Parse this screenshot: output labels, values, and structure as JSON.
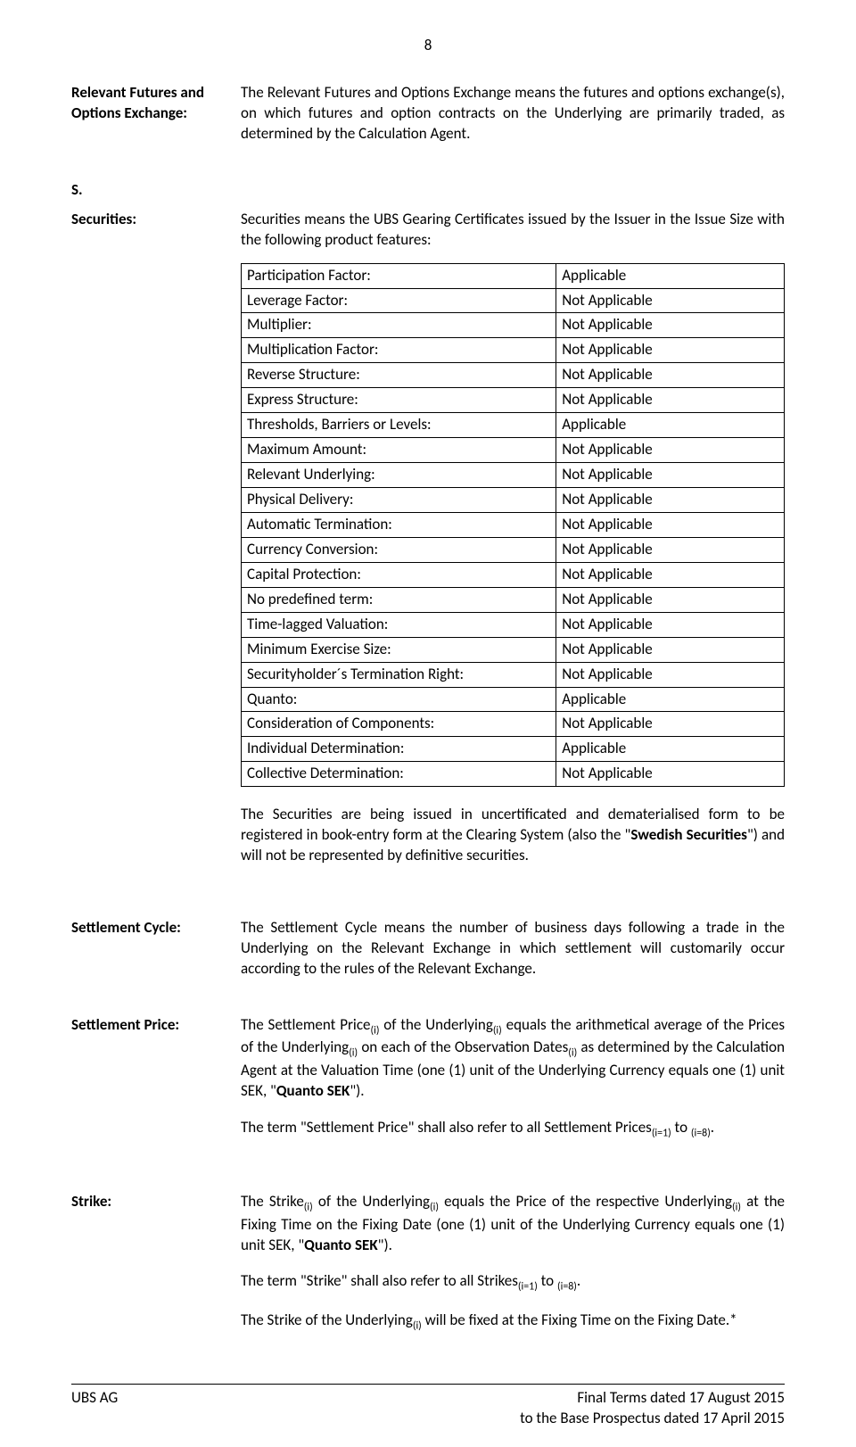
{
  "page_number": "8",
  "definitions": {
    "relevant_futures": {
      "term_line1": "Relevant Futures and",
      "term_line2": "Options Exchange:",
      "body": "The Relevant Futures and Options Exchange means the futures and options exchange(s), on which futures and option contracts on the Underlying are primarily traded, as determined by the Calculation Agent."
    },
    "section_letter": "S.",
    "securities": {
      "term": "Securities:",
      "intro": "Securities means the UBS Gearing Certificates issued by the Issuer in the Issue Size with the following product features:",
      "features": [
        [
          "Participation Factor:",
          "Applicable"
        ],
        [
          "Leverage Factor:",
          "Not Applicable"
        ],
        [
          "Multiplier:",
          "Not Applicable"
        ],
        [
          "Multiplication Factor:",
          "Not Applicable"
        ],
        [
          "Reverse Structure:",
          "Not Applicable"
        ],
        [
          "Express Structure:",
          "Not Applicable"
        ],
        [
          "Thresholds, Barriers or Levels:",
          "Applicable"
        ],
        [
          "Maximum Amount:",
          "Not Applicable"
        ],
        [
          "Relevant Underlying:",
          "Not Applicable"
        ],
        [
          "Physical Delivery:",
          "Not Applicable"
        ],
        [
          "Automatic Termination:",
          "Not Applicable"
        ],
        [
          "Currency Conversion:",
          "Not Applicable"
        ],
        [
          "Capital Protection:",
          "Not Applicable"
        ],
        [
          "No predefined term:",
          "Not Applicable"
        ],
        [
          "Time-lagged Valuation:",
          "Not Applicable"
        ],
        [
          "Minimum Exercise Size:",
          "Not Applicable"
        ],
        [
          "Securityholder´s Termination Right:",
          "Not Applicable"
        ],
        [
          "Quanto:",
          "Applicable"
        ],
        [
          "Consideration of Components:",
          "Not Applicable"
        ],
        [
          "Individual Determination:",
          "Applicable"
        ],
        [
          "Collective Determination:",
          "Not Applicable"
        ]
      ],
      "outro_prefix": "The Securities are being issued in uncertificated and dematerialised form to be registered in book-entry form at the Clearing System (also the \"",
      "outro_bold": "Swedish Securities",
      "outro_suffix": "\") and will not be represented by definitive securities."
    },
    "settlement_cycle": {
      "term": "Settlement Cycle:",
      "body": "The Settlement Cycle means the number of business days following a trade in the Underlying on the Relevant Exchange in which settlement will customarily occur according to the rules of the Relevant Exchange."
    },
    "settlement_price": {
      "term": "Settlement Price:",
      "p1_a": "The Settlement Price",
      "p1_b": " of the Underlying",
      "p1_c": " equals the arithmetical average of the Prices of the Underlying",
      "p1_d": " on each of the Observation Dates",
      "p1_e": " as determined by the Calculation Agent at the Valuation Time (one (1) unit of the Underlying Currency equals one (1) unit SEK, \"",
      "p1_bold": "Quanto SEK",
      "p1_f": "\").",
      "p2_a": "The term \"Settlement Price\" shall also refer to all Settlement Prices",
      "p2_b": " to ",
      "p2_c": "."
    },
    "strike": {
      "term": "Strike:",
      "p1_a": "The Strike",
      "p1_b": " of the Underlying",
      "p1_c": " equals the Price of the respective Underlying",
      "p1_d": " at the Fixing Time on the Fixing Date (one (1) unit of the Underlying Currency equals one (1) unit SEK, \"",
      "p1_bold": "Quanto SEK",
      "p1_e": "\").",
      "p2_a": "The term \"Strike\" shall also refer to all Strikes",
      "p2_b": " to ",
      "p2_c": ".",
      "p3_a": "The Strike of the Underlying",
      "p3_b": " will be fixed at the Fixing Time on the Fixing Date."
    },
    "subs": {
      "i": "(i)",
      "i1": "(i=1)",
      "i8": "(i=8)"
    }
  },
  "footer": {
    "left": "UBS AG",
    "right_line1": "Final Terms dated 17 August 2015",
    "right_line2": "to the Base Prospectus dated 17 April 2015"
  }
}
